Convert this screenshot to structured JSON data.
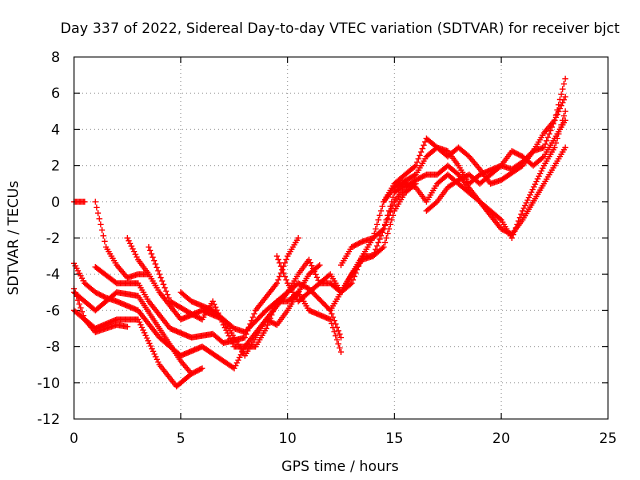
{
  "chart_data": {
    "type": "scatter",
    "title": "Day 337 of 2022, Sidereal Day-to-day VTEC variation (SDTVAR) for receiver bjct",
    "xlabel": "GPS time / hours",
    "ylabel": "SDTVAR / TECUs",
    "xlim": [
      0,
      25
    ],
    "ylim": [
      -12,
      8
    ],
    "xticks": [
      0,
      5,
      10,
      15,
      20,
      25
    ],
    "yticks": [
      -12,
      -10,
      -8,
      -6,
      -4,
      -2,
      0,
      2,
      4,
      6,
      8
    ],
    "grid": true,
    "marker": "+",
    "color": "#ff0000",
    "series": [
      {
        "points": [
          [
            0.0,
            0.0
          ],
          [
            0.5,
            0.0
          ]
        ]
      },
      {
        "points": [
          [
            0.0,
            -4.8
          ],
          [
            0.5,
            -6.5
          ],
          [
            1.0,
            -7.2
          ],
          [
            1.5,
            -7.0
          ],
          [
            2.0,
            -6.8
          ],
          [
            2.5,
            -6.9
          ]
        ]
      },
      {
        "points": [
          [
            0.0,
            -3.4
          ],
          [
            0.5,
            -4.5
          ],
          [
            1.0,
            -5.0
          ],
          [
            1.5,
            -5.3
          ],
          [
            2.0,
            -5.5
          ],
          [
            3.0,
            -6.0
          ],
          [
            4.0,
            -7.5
          ],
          [
            5.0,
            -8.5
          ],
          [
            6.0,
            -8.0
          ],
          [
            7.0,
            -8.8
          ],
          [
            7.5,
            -9.2
          ],
          [
            8.0,
            -8.0
          ],
          [
            9.0,
            -6.5
          ],
          [
            10.0,
            -5.0
          ],
          [
            10.5,
            -4.5
          ],
          [
            11.0,
            -4.8
          ],
          [
            12.0,
            -6.0
          ],
          [
            12.5,
            -7.5
          ]
        ]
      },
      {
        "points": [
          [
            0.0,
            -5.0
          ],
          [
            1.0,
            -6.0
          ],
          [
            2.0,
            -5.0
          ],
          [
            3.0,
            -5.2
          ],
          [
            4.0,
            -7.0
          ],
          [
            5.0,
            -8.8
          ],
          [
            5.5,
            -9.5
          ]
        ]
      },
      {
        "points": [
          [
            0.0,
            -6.0
          ],
          [
            1.0,
            -7.0
          ],
          [
            2.0,
            -6.5
          ],
          [
            3.0,
            -6.5
          ],
          [
            4.0,
            -9.0
          ],
          [
            4.8,
            -10.2
          ],
          [
            5.5,
            -9.5
          ],
          [
            6.0,
            -9.2
          ]
        ]
      },
      {
        "points": [
          [
            1.0,
            0.0
          ],
          [
            1.5,
            -2.5
          ],
          [
            2.0,
            -3.5
          ],
          [
            2.5,
            -4.2
          ],
          [
            3.0,
            -4.0
          ],
          [
            3.5,
            -4.0
          ]
        ]
      },
      {
        "points": [
          [
            1.0,
            -3.6
          ],
          [
            2.0,
            -4.5
          ],
          [
            3.0,
            -4.5
          ],
          [
            3.5,
            -5.5
          ],
          [
            4.5,
            -7.0
          ],
          [
            5.5,
            -7.5
          ],
          [
            6.5,
            -7.3
          ],
          [
            7.0,
            -7.8
          ],
          [
            8.0,
            -7.5
          ],
          [
            8.5,
            -6.0
          ],
          [
            9.5,
            -4.5
          ],
          [
            10.0,
            -3.0
          ],
          [
            10.5,
            -2.0
          ]
        ]
      },
      {
        "points": [
          [
            2.5,
            -2.0
          ],
          [
            3.0,
            -3.2
          ],
          [
            3.5,
            -4.0
          ],
          [
            4.0,
            -5.0
          ],
          [
            5.0,
            -6.5
          ],
          [
            6.0,
            -6.0
          ],
          [
            7.0,
            -6.5
          ],
          [
            7.5,
            -7.5
          ],
          [
            8.0,
            -8.5
          ],
          [
            8.5,
            -7.5
          ],
          [
            9.0,
            -6.5
          ],
          [
            9.5,
            -6.8
          ],
          [
            10.0,
            -6.0
          ],
          [
            11.0,
            -4.0
          ],
          [
            11.5,
            -3.5
          ]
        ]
      },
      {
        "points": [
          [
            3.5,
            -2.5
          ],
          [
            4.0,
            -4.0
          ],
          [
            4.5,
            -5.5
          ],
          [
            5.5,
            -6.2
          ],
          [
            6.0,
            -6.5
          ],
          [
            6.5,
            -5.5
          ],
          [
            7.0,
            -6.8
          ],
          [
            7.5,
            -8.0
          ],
          [
            8.5,
            -8.0
          ],
          [
            9.0,
            -7.0
          ],
          [
            9.5,
            -5.5
          ],
          [
            10.0,
            -5.5
          ],
          [
            10.5,
            -5.0
          ],
          [
            11.0,
            -6.0
          ],
          [
            12.0,
            -6.5
          ],
          [
            12.5,
            -8.3
          ]
        ]
      },
      {
        "points": [
          [
            5.0,
            -5.0
          ],
          [
            5.5,
            -5.5
          ],
          [
            6.5,
            -6.0
          ],
          [
            7.0,
            -6.5
          ],
          [
            7.5,
            -7.0
          ],
          [
            8.0,
            -7.2
          ],
          [
            9.0,
            -6.0
          ],
          [
            10.0,
            -5.0
          ],
          [
            10.5,
            -4.0
          ],
          [
            11.0,
            -3.2
          ],
          [
            11.5,
            -4.5
          ],
          [
            12.0,
            -4.5
          ],
          [
            12.5,
            -5.0
          ],
          [
            13.5,
            -3.0
          ],
          [
            14.0,
            -3.0
          ],
          [
            14.5,
            -2.5
          ],
          [
            15.0,
            -0.5
          ],
          [
            15.5,
            0.5
          ],
          [
            16.0,
            1.0
          ]
        ]
      },
      {
        "points": [
          [
            9.5,
            -3.0
          ],
          [
            10.0,
            -4.5
          ],
          [
            10.5,
            -5.5
          ],
          [
            11.0,
            -5.0
          ],
          [
            11.5,
            -4.5
          ],
          [
            12.0,
            -4.0
          ],
          [
            12.5,
            -5.0
          ],
          [
            13.0,
            -4.5
          ],
          [
            13.5,
            -3.0
          ],
          [
            14.0,
            -2.0
          ],
          [
            14.5,
            -1.5
          ],
          [
            15.0,
            0.0
          ],
          [
            15.5,
            0.8
          ],
          [
            16.0,
            1.2
          ],
          [
            16.5,
            1.5
          ],
          [
            17.0,
            1.5
          ],
          [
            17.5,
            2.0
          ],
          [
            18.0,
            1.5
          ],
          [
            19.0,
            0.0
          ],
          [
            20.0,
            -1.5
          ],
          [
            20.5,
            -1.8
          ],
          [
            21.0,
            -1.0
          ],
          [
            22.0,
            1.0
          ],
          [
            22.5,
            2.0
          ],
          [
            23.0,
            3.0
          ]
        ]
      },
      {
        "points": [
          [
            12.0,
            -6.0
          ],
          [
            12.5,
            -5.0
          ],
          [
            13.0,
            -4.0
          ],
          [
            13.5,
            -3.2
          ],
          [
            14.0,
            -3.0
          ],
          [
            14.5,
            -1.5
          ],
          [
            15.0,
            0.5
          ],
          [
            15.5,
            1.0
          ],
          [
            16.0,
            0.8
          ],
          [
            16.5,
            0.0
          ],
          [
            17.0,
            1.0
          ],
          [
            17.5,
            1.5
          ],
          [
            18.0,
            1.0
          ],
          [
            18.5,
            0.5
          ],
          [
            19.0,
            0.0
          ],
          [
            20.0,
            -1.0
          ],
          [
            20.5,
            -2.0
          ],
          [
            21.0,
            -0.5
          ],
          [
            22.0,
            2.0
          ],
          [
            22.5,
            3.0
          ],
          [
            23.0,
            5.0
          ]
        ]
      },
      {
        "points": [
          [
            12.5,
            -3.5
          ],
          [
            13.0,
            -2.5
          ],
          [
            13.5,
            -2.2
          ],
          [
            14.0,
            -2.0
          ],
          [
            14.5,
            0.0
          ],
          [
            15.0,
            1.0
          ],
          [
            15.5,
            1.5
          ],
          [
            16.0,
            2.0
          ],
          [
            16.5,
            3.5
          ],
          [
            17.0,
            3.0
          ],
          [
            17.5,
            2.5
          ],
          [
            18.0,
            3.0
          ],
          [
            18.5,
            2.5
          ],
          [
            19.0,
            1.8
          ],
          [
            19.5,
            1.0
          ],
          [
            20.0,
            1.2
          ],
          [
            21.0,
            2.0
          ],
          [
            21.5,
            2.8
          ],
          [
            22.0,
            3.0
          ],
          [
            22.5,
            4.5
          ],
          [
            23.0,
            6.8
          ]
        ]
      },
      {
        "points": [
          [
            14.5,
            0.0
          ],
          [
            15.0,
            0.8
          ],
          [
            16.0,
            1.5
          ],
          [
            16.5,
            2.5
          ],
          [
            17.0,
            3.0
          ],
          [
            17.5,
            2.8
          ],
          [
            18.0,
            2.0
          ],
          [
            18.5,
            1.0
          ],
          [
            19.0,
            1.5
          ],
          [
            20.0,
            2.0
          ],
          [
            20.5,
            2.8
          ],
          [
            21.0,
            2.5
          ],
          [
            21.5,
            2.0
          ],
          [
            22.0,
            2.5
          ],
          [
            22.5,
            3.5
          ],
          [
            23.0,
            4.5
          ]
        ]
      },
      {
        "points": [
          [
            16.5,
            -0.5
          ],
          [
            17.0,
            0.0
          ],
          [
            17.5,
            0.8
          ],
          [
            18.0,
            1.2
          ],
          [
            18.5,
            1.5
          ],
          [
            19.0,
            1.0
          ],
          [
            19.5,
            1.5
          ],
          [
            20.0,
            2.0
          ],
          [
            20.5,
            1.8
          ],
          [
            21.0,
            2.2
          ],
          [
            21.5,
            2.8
          ],
          [
            22.0,
            3.8
          ],
          [
            22.5,
            4.5
          ],
          [
            23.0,
            5.8
          ]
        ]
      }
    ]
  }
}
